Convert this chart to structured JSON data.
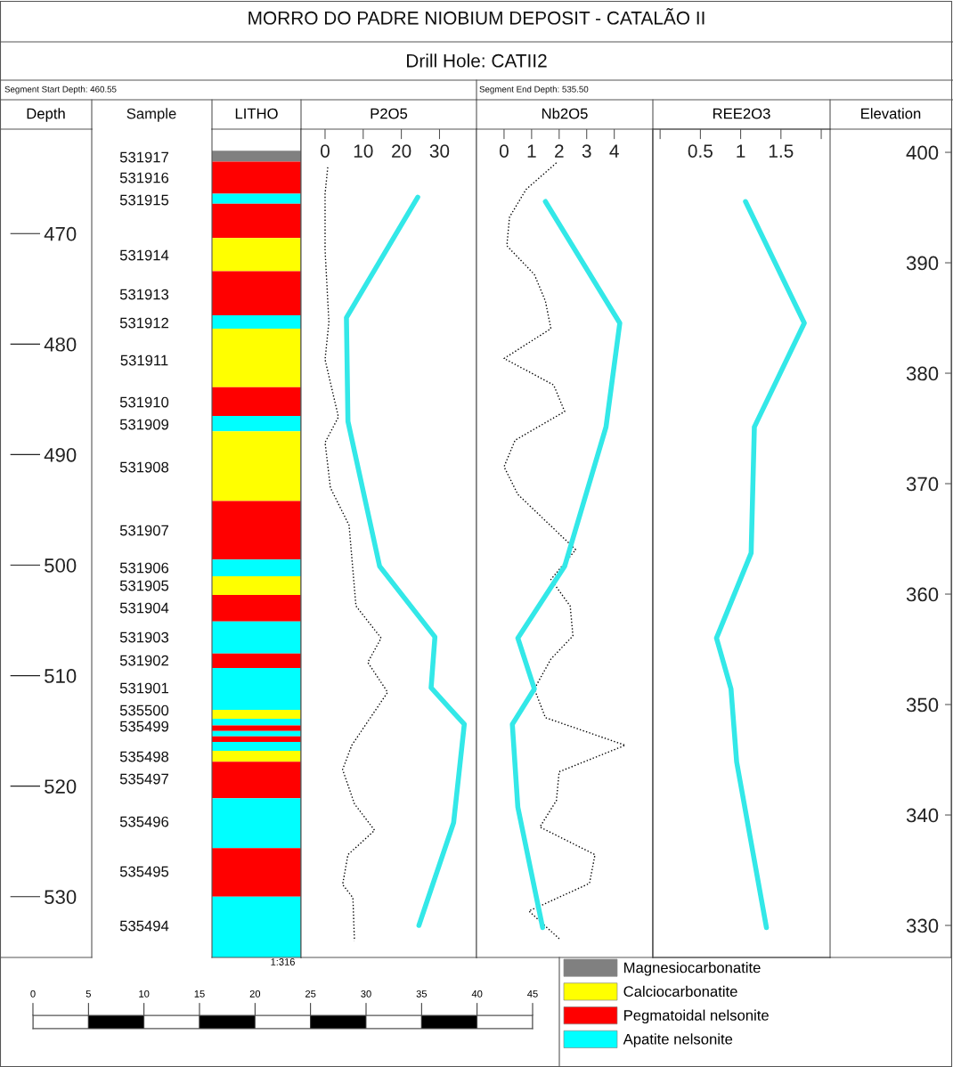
{
  "chart_data": [
    {
      "type": "bar",
      "xlabel": "LITHO",
      "ylabel": "Depth",
      "categories": [
        null
      ],
      "ylim": [
        535.5,
        460.55
      ],
      "yticks": [
        470,
        480,
        490,
        500,
        510,
        520,
        530
      ],
      "tick_labels": "y",
      "legend": "bottom",
      "annotations": [
        "MORRO DO PADRE NIOBIUM DEPOSIT - CATALÃO II",
        "Drill Hole: CATII2",
        "Segment Start Depth: 460.55",
        "Segment End Depth: 535.50",
        "Sample",
        "531917",
        "531916",
        "531915",
        "531914",
        "531913",
        "531912",
        "531911",
        "531910",
        "531909",
        "531908",
        "531907",
        "531906",
        "531905",
        "531904",
        "531903",
        "531902",
        "531901",
        "535500",
        "535499",
        "535498",
        "535497",
        "535496",
        "535495",
        "535494"
      ],
      "series": [
        {
          "name": "Magnesiocarbonatite",
          "color": "#808080",
          "base": [
            462.5
          ],
          "values": [
            1.0
          ]
        },
        {
          "color": "#ff0000",
          "base": [
            463.5
          ],
          "values": [
            2.9
          ]
        },
        {
          "color": "#00ffff",
          "base": [
            466.4
          ],
          "values": [
            0.9
          ]
        },
        {
          "color": "#ff0000",
          "base": [
            467.3
          ],
          "values": [
            3.1
          ]
        },
        {
          "name": "Calciocarbonatite",
          "color": "#ffff00",
          "base": [
            470.4
          ],
          "values": [
            3.0
          ]
        },
        {
          "name": "Pegmatoidal nelsonite",
          "color": "#ff0000",
          "base": [
            473.4
          ],
          "values": [
            4.0
          ]
        },
        {
          "name": "Apatite nelsonite",
          "color": "#00ffff",
          "base": [
            477.4
          ],
          "values": [
            1.2
          ]
        },
        {
          "color": "#ffff00",
          "base": [
            478.6
          ],
          "values": [
            5.3
          ]
        },
        {
          "color": "#ff0000",
          "base": [
            483.9
          ],
          "values": [
            2.6
          ]
        },
        {
          "color": "#00ffff",
          "base": [
            486.5
          ],
          "values": [
            1.4
          ]
        },
        {
          "color": "#ffff00",
          "base": [
            487.9
          ],
          "values": [
            6.3
          ]
        },
        {
          "color": "#ff0000",
          "base": [
            494.2
          ],
          "values": [
            5.3
          ]
        },
        {
          "color": "#00ffff",
          "base": [
            499.5
          ],
          "values": [
            1.5
          ]
        },
        {
          "color": "#ffff00",
          "base": [
            501.0
          ],
          "values": [
            1.7
          ]
        },
        {
          "color": "#ff0000",
          "base": [
            502.7
          ],
          "values": [
            2.4
          ]
        },
        {
          "color": "#00ffff",
          "base": [
            505.1
          ],
          "values": [
            2.9
          ]
        },
        {
          "color": "#ff0000",
          "base": [
            508.0
          ],
          "values": [
            1.3
          ]
        },
        {
          "color": "#00ffff",
          "base": [
            509.3
          ],
          "values": [
            3.8
          ]
        },
        {
          "color": "#ffff00",
          "base": [
            513.1
          ],
          "values": [
            0.8
          ]
        },
        {
          "color": "#00ffff",
          "base": [
            513.9
          ],
          "values": [
            0.6
          ]
        },
        {
          "color": "#ff0000",
          "base": [
            514.5
          ],
          "values": [
            0.5
          ]
        },
        {
          "color": "#00ffff",
          "base": [
            515.0
          ],
          "values": [
            0.5
          ]
        },
        {
          "color": "#ff0000",
          "base": [
            515.5
          ],
          "values": [
            0.5
          ]
        },
        {
          "color": "#00ffff",
          "base": [
            516.0
          ],
          "values": [
            0.8
          ]
        },
        {
          "color": "#ffff00",
          "base": [
            516.8
          ],
          "values": [
            1.0
          ]
        },
        {
          "color": "#ff0000",
          "base": [
            517.8
          ],
          "values": [
            3.3
          ]
        },
        {
          "color": "#00ffff",
          "base": [
            521.1
          ],
          "values": [
            4.5
          ]
        },
        {
          "color": "#ff0000",
          "base": [
            525.6
          ],
          "values": [
            4.4
          ]
        },
        {
          "color": "#00ffff",
          "base": [
            530.0
          ],
          "values": [
            5.5
          ]
        }
      ]
    },
    {
      "type": "line",
      "orientation": "horizontal",
      "title": "P2O5",
      "xlim": [
        -6.3,
        39.7
      ],
      "xticks": [
        0,
        10,
        20,
        30
      ],
      "ylim": [
        535.5,
        460.55
      ],
      "tick_labels": "x",
      "series": [
        {
          "color": "#000000",
          "line_style": "dotted",
          "x": [
            464.0,
            466.4,
            471.5,
            478.0,
            481.4,
            486.6,
            488.9,
            493.0,
            496.4,
            503.7,
            506.6,
            508.8,
            511.5,
            516.3,
            518.5,
            521.6,
            524.0,
            526.2,
            528.9,
            530.1,
            534.0
          ],
          "values": [
            0.7,
            0.0,
            0.0,
            1.0,
            0.0,
            3.5,
            0.0,
            1.4,
            6.3,
            8.1,
            14.7,
            11.2,
            16.4,
            7.0,
            4.6,
            7.7,
            13.0,
            6.0,
            4.6,
            7.3,
            7.7
          ]
        },
        {
          "color": "#33e8e8",
          "line_style": "solid",
          "x": [
            466.7,
            477.6,
            487.0,
            500.1,
            506.5,
            511.1,
            514.4,
            523.3,
            532.6
          ],
          "values": [
            24.3,
            5.6,
            6.0,
            14.3,
            28.8,
            27.8,
            36.5,
            33.7,
            24.6
          ]
        }
      ]
    },
    {
      "type": "line",
      "orientation": "horizontal",
      "title": "Nb2O5",
      "xlim": [
        -1.0,
        5.4
      ],
      "xticks": [
        0,
        1,
        2,
        3,
        4
      ],
      "ylim": [
        535.5,
        460.55
      ],
      "tick_labels": "x",
      "series": [
        {
          "color": "#000000",
          "line_style": "dotted",
          "x": [
            463.6,
            466.0,
            468.5,
            471.1,
            473.7,
            476.1,
            478.6,
            481.3,
            483.7,
            486.1,
            488.7,
            491.1,
            493.6,
            498.6,
            501.3,
            503.7,
            506.4,
            508.5,
            511.2,
            513.8,
            516.3,
            518.7,
            521.3,
            523.7,
            526.2,
            528.8,
            531.3,
            533.8
          ],
          "values": [
            1.9,
            0.8,
            0.2,
            0.1,
            1.1,
            1.5,
            1.7,
            0.0,
            1.8,
            2.2,
            0.4,
            0.0,
            0.5,
            2.6,
            1.7,
            2.4,
            2.5,
            1.7,
            1.1,
            1.5,
            4.4,
            2.0,
            1.9,
            1.3,
            3.3,
            3.1,
            0.9,
            2.0
          ]
        },
        {
          "color": "#33e8e8",
          "line_style": "solid",
          "x": [
            467.1,
            478.1,
            487.5,
            500.1,
            506.6,
            511.2,
            514.4,
            521.9,
            532.8
          ],
          "values": [
            1.5,
            4.2,
            3.7,
            2.2,
            0.5,
            1.1,
            0.3,
            0.5,
            1.4
          ]
        }
      ]
    },
    {
      "type": "line",
      "orientation": "horizontal",
      "title": "REE2O3",
      "y2label": "Elevation",
      "xlim": [
        -0.09,
        2.11
      ],
      "xticks": [
        {
          "value": 0,
          "label": null
        },
        0.5,
        1,
        1.5,
        {
          "value": 2,
          "label": null
        }
      ],
      "ylim": [
        535.5,
        460.55
      ],
      "y2lim": [
        327.1,
        402.1
      ],
      "y2ticks": [
        330,
        340,
        350,
        360,
        370,
        380,
        390,
        400
      ],
      "series": [
        {
          "color": "#33e8e8",
          "line_style": "solid",
          "x": [
            467.1,
            478.1,
            487.5,
            498.9,
            506.6,
            511.2,
            517.8,
            532.8
          ],
          "values": [
            1.06,
            1.79,
            1.17,
            1.13,
            0.7,
            0.88,
            0.95,
            1.32
          ]
        }
      ]
    },
    {
      "type": "bar",
      "orientation": "horizontal",
      "stacked": true,
      "title": "1:316",
      "categories": [
        null
      ],
      "xlim": [
        0,
        45
      ],
      "xticks": [
        0,
        5,
        10,
        15,
        20,
        25,
        30,
        35,
        40,
        45
      ],
      "tick_labels": "x",
      "series": [
        {
          "color": "#ffffff",
          "values": [
            5
          ]
        },
        {
          "color": "#000000",
          "values": [
            5
          ]
        },
        {
          "color": "#ffffff",
          "values": [
            5
          ]
        },
        {
          "color": "#000000",
          "values": [
            5
          ]
        },
        {
          "color": "#ffffff",
          "values": [
            5
          ]
        },
        {
          "color": "#000000",
          "values": [
            5
          ]
        },
        {
          "color": "#ffffff",
          "values": [
            5
          ]
        },
        {
          "color": "#000000",
          "values": [
            5
          ]
        },
        {
          "color": "#ffffff",
          "values": [
            5
          ]
        }
      ]
    }
  ]
}
